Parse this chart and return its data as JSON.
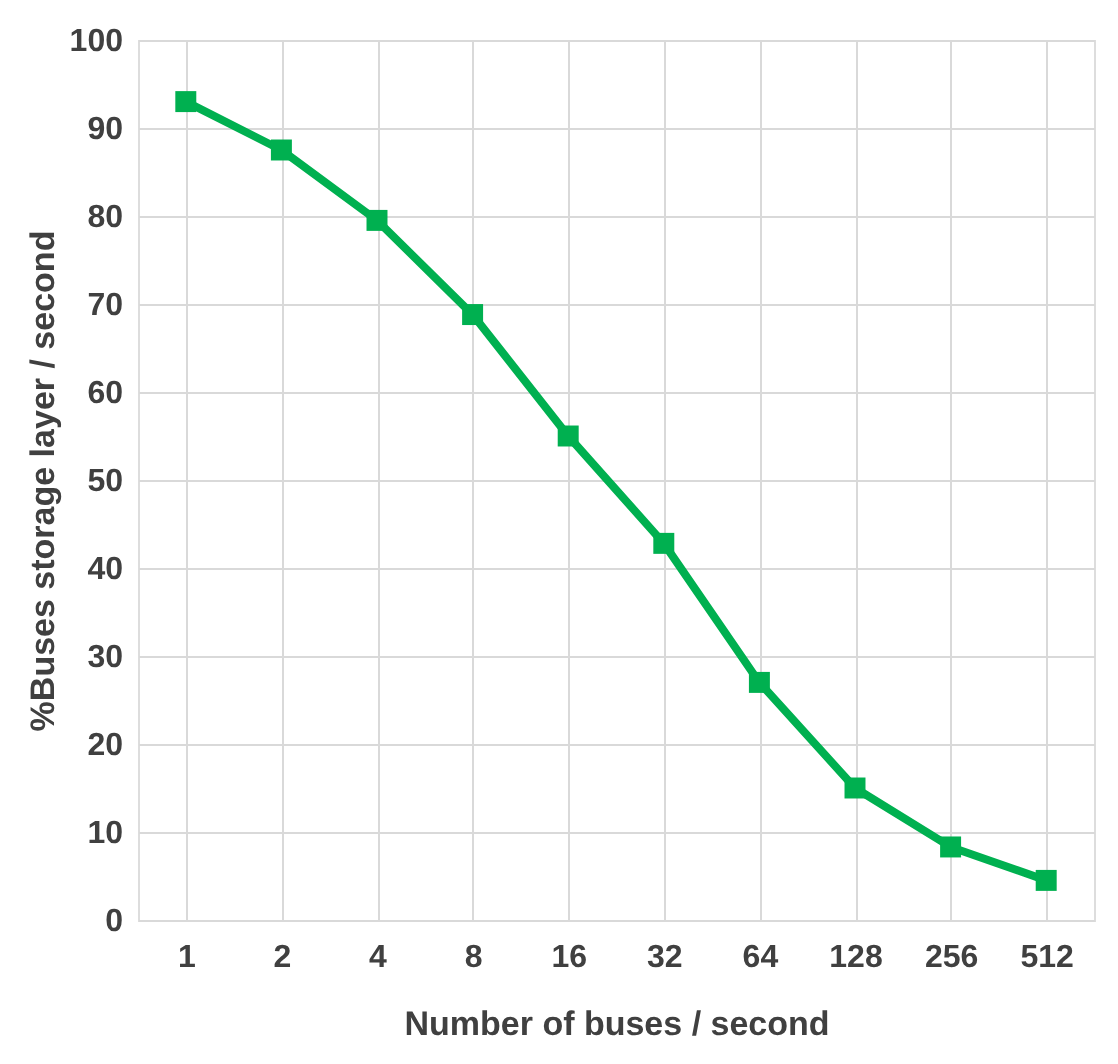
{
  "chart_data": {
    "type": "line",
    "xlabel": "Number of buses / second",
    "ylabel": "%Buses storage layer / second",
    "categories": [
      "1",
      "2",
      "4",
      "8",
      "16",
      "32",
      "64",
      "128",
      "256",
      "512"
    ],
    "series": [
      {
        "color": "#00b050",
        "values": [
          93,
          87.5,
          79.5,
          68.8,
          55,
          42.8,
          27,
          15,
          8.3,
          4.5
        ]
      }
    ],
    "ylim": [
      0,
      100
    ],
    "yticks": [
      0,
      10,
      20,
      30,
      40,
      50,
      60,
      70,
      80,
      90,
      100
    ],
    "grid": true,
    "marker": "square",
    "line_style": "solid"
  }
}
